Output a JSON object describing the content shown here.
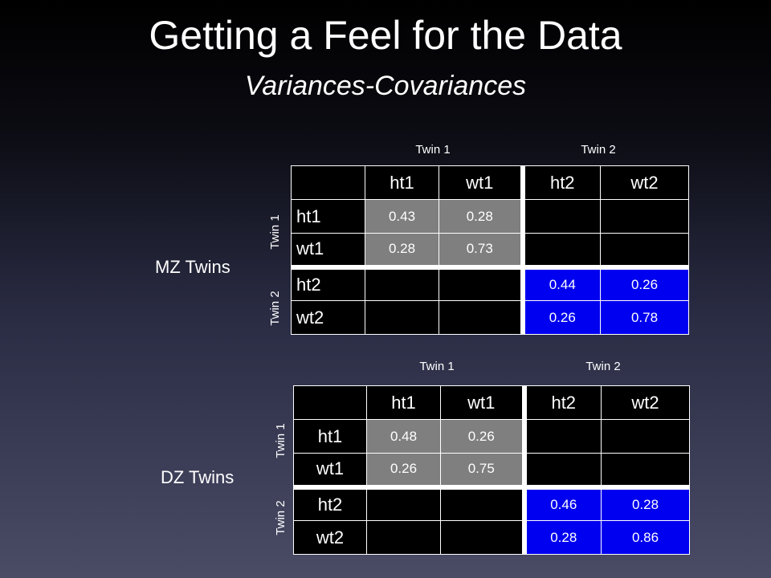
{
  "title": "Getting a Feel for the Data",
  "subtitle": "Variances-Covariances",
  "mz": {
    "label": "MZ Twins",
    "col_groups": [
      "Twin 1",
      "Twin 2"
    ],
    "row_groups": [
      "Twin 1",
      "Twin 2"
    ],
    "columns": [
      "ht1",
      "wt1",
      "ht2",
      "wt2"
    ],
    "rows": [
      {
        "label": "ht1",
        "values": [
          "0.43",
          "0.28",
          "",
          ""
        ]
      },
      {
        "label": "wt1",
        "values": [
          "0.28",
          "0.73",
          "",
          ""
        ]
      },
      {
        "label": "ht2",
        "values": [
          "",
          "",
          "0.44",
          "0.26"
        ]
      },
      {
        "label": "wt2",
        "values": [
          "",
          "",
          "0.26",
          "0.78"
        ]
      }
    ]
  },
  "dz": {
    "label": "DZ Twins",
    "col_groups": [
      "Twin 1",
      "Twin 2"
    ],
    "row_groups": [
      "Twin 1",
      "Twin 2"
    ],
    "columns": [
      "ht1",
      "wt1",
      "ht2",
      "wt2"
    ],
    "rows": [
      {
        "label": "ht1",
        "values": [
          "0.48",
          "0.26",
          "",
          ""
        ]
      },
      {
        "label": "wt1",
        "values": [
          "0.26",
          "0.75",
          "",
          ""
        ]
      },
      {
        "label": "ht2",
        "values": [
          "",
          "",
          "0.46",
          "0.28"
        ]
      },
      {
        "label": "wt2",
        "values": [
          "",
          "",
          "0.28",
          "0.86"
        ]
      }
    ]
  },
  "colors": {
    "twin1_block": "#7f7f7f",
    "twin2_block": "#0000f0",
    "empty_cell": "#000000"
  }
}
